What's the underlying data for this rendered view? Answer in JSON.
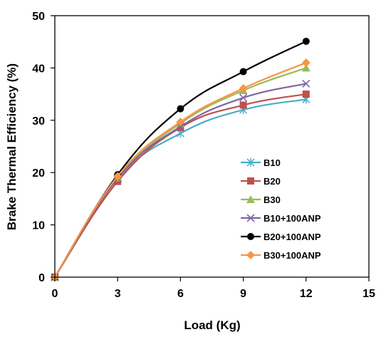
{
  "chart_data": {
    "type": "line",
    "xlabel": "Load (Kg)",
    "ylabel": "Brake Thermal Efficiency (%)",
    "xlim": [
      0,
      15
    ],
    "ylim": [
      0,
      50
    ],
    "xticks": [
      "0",
      "3",
      "6",
      "9",
      "12",
      "15"
    ],
    "yticks": [
      "0",
      "10",
      "20",
      "30",
      "40",
      "50"
    ],
    "grid": false,
    "legend_position": "right",
    "x": [
      0,
      3,
      6,
      9,
      12
    ],
    "series": [
      {
        "name": "B10",
        "values": [
          0,
          18.8,
          27.5,
          32,
          34
        ],
        "color": "#4bacc6",
        "marker": "asterisk"
      },
      {
        "name": "B20",
        "values": [
          0,
          18.3,
          28.6,
          32.9,
          35
        ],
        "color": "#c0504d",
        "marker": "square"
      },
      {
        "name": "B30",
        "values": [
          0,
          19,
          29.4,
          35.7,
          40
        ],
        "color": "#9bbb59",
        "marker": "triangle"
      },
      {
        "name": "B10+100ANP",
        "values": [
          0,
          18.9,
          28.8,
          34.3,
          37
        ],
        "color": "#8064a2",
        "marker": "x"
      },
      {
        "name": "B20+100ANP",
        "values": [
          0,
          19.6,
          32.2,
          39.3,
          45.1
        ],
        "color": "#000000",
        "marker": "circle"
      },
      {
        "name": "B30+100ANP",
        "values": [
          0,
          19.3,
          29.7,
          36.1,
          41
        ],
        "color": "#f79646",
        "marker": "diamond"
      }
    ]
  }
}
